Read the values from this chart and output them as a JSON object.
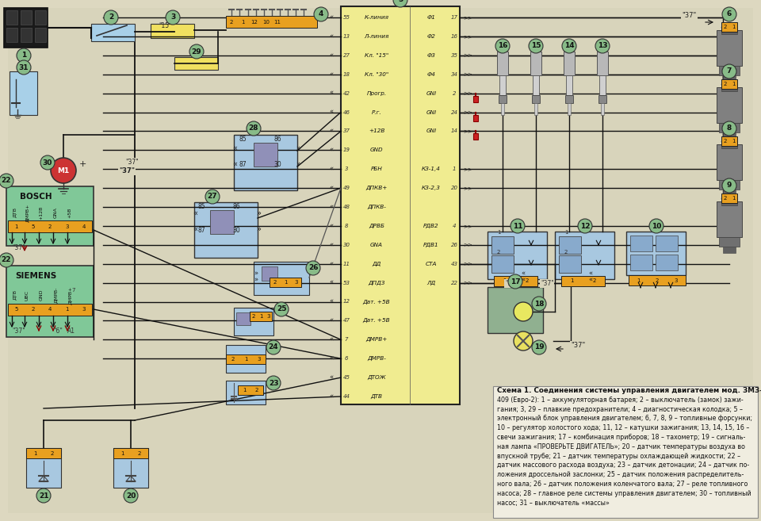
{
  "description_lines": [
    "Схема 1. Соединения системы управления двигателем мод. ЗМЗ-",
    "409 (Евро-2): 1 – аккумуляторная батарея; 2 – выключатель (замок) зажи-",
    "гания; 3, 29 – плавкие предохранители; 4 – диагностическая колодка; 5 –",
    "электронный блок управления двигателем; 6, 7, 8, 9 – топливные форсунки;",
    "10 – регулятор холостого хода; 11, 12 – катушки зажигания; 13, 14, 15, 16 –",
    "свечи зажигания; 17 – комбинация приборов; 18 – тахометр; 19 – сигналь-",
    "ная лампа «ПРОВЕРЬТЕ ДВИГАТЕЛЬ»; 20 – датчик температуры воздуха во",
    "впускной трубе; 21 – датчик температуры охлаждающей жидкости; 22 –",
    "датчик массового расхода воздуха; 23 – датчик детонации; 24 – датчик по-",
    "ложения дроссельной заслонки; 25 – датчик положения распределитель-",
    "ного вала; 26 – датчик положения коленчатого вала; 27 – реле топливного",
    "насоса; 28 – главное реле системы управления двигателем; 30 – топливный",
    "насос; 31 – выключатель «массы»"
  ],
  "bg_color": "#cfc9b0",
  "page_bg": "#ddd8c0",
  "ecu_color": "#f0ec90",
  "ecu_border": "#222222",
  "bosch_bg": "#80c898",
  "siemens_bg": "#80c898",
  "circle_color": "#88bb88",
  "connector_color": "#e8a020",
  "coil_color": "#a8c8e0",
  "relay_color": "#a8c8e0",
  "desc_bg": "#f0ede0",
  "desc_border": "#888888",
  "figsize": [
    9.6,
    6.57
  ],
  "dpi": 100,
  "ecu_rows": [
    [
      "55",
      "К-линия",
      "Ф1",
      "17"
    ],
    [
      "13",
      "Л-линия",
      "Ф2",
      "16"
    ],
    [
      "27",
      "Кл. \"15\"",
      "Ф3",
      "35"
    ],
    [
      "18",
      "Кл. \"30\"",
      "Ф4",
      "34"
    ],
    [
      "42",
      "Прогр.",
      "GNI",
      "2"
    ],
    [
      "46",
      "Р.г.",
      "GNI",
      "24"
    ],
    [
      "37",
      "+12В",
      "GNI",
      "14"
    ],
    [
      "19",
      "GND",
      "",
      ""
    ],
    [
      "3",
      "РБН",
      "КЗ-1,4",
      "1"
    ],
    [
      "49",
      "ДПКВ+",
      "КЗ-2,3",
      "20"
    ],
    [
      "48",
      "ДПКВ-",
      "",
      ""
    ],
    [
      "8",
      "ДРВБ",
      "РДВ2",
      "4"
    ],
    [
      "30",
      "GNA",
      "РДВ1",
      "26"
    ],
    [
      "11",
      "ДД",
      "СТА",
      "43"
    ],
    [
      "53",
      "ДПДЗ",
      "ЛД",
      "22"
    ],
    [
      "12",
      "Дат. +5В",
      "",
      ""
    ],
    [
      "47",
      "Дат. +5В",
      "",
      ""
    ],
    [
      "7",
      "ДМРВ+",
      "",
      ""
    ],
    [
      "6",
      "ДМРВ-",
      "",
      ""
    ],
    [
      "45",
      "ДТОЖ",
      "",
      ""
    ],
    [
      "44",
      "ДТВ",
      "",
      ""
    ]
  ]
}
